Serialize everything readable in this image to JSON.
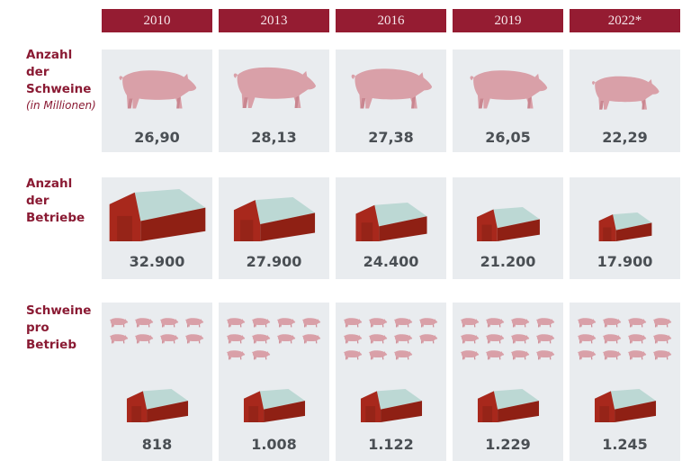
{
  "years": [
    "2010",
    "2013",
    "2016",
    "2019",
    "2022*"
  ],
  "rows": {
    "pigs": {
      "label_lines": [
        "Anzahl",
        "der",
        "Schweine"
      ],
      "sublabel": "(in Millionen)",
      "values": [
        "26,90",
        "28,13",
        "27,38",
        "26,05",
        "22,29"
      ]
    },
    "farms": {
      "label_lines": [
        "Anzahl",
        "der",
        "Betriebe"
      ],
      "values": [
        "32.900",
        "27.900",
        "24.400",
        "21.200",
        "17.900"
      ]
    },
    "per_farm": {
      "label_lines": [
        "Schweine",
        "pro",
        "Betrieb"
      ],
      "values": [
        "818",
        "1.008",
        "1.122",
        "1.229",
        "1.245"
      ],
      "mini_pig_counts": [
        8,
        10,
        11,
        12,
        12
      ]
    }
  },
  "colors": {
    "header_bg": "#951c32",
    "label_text": "#8a1a33",
    "box_bg": "#e9ecef",
    "pig": "#d9a0a8",
    "barn_front": "#a8281c",
    "barn_roof": "#bcd8d4",
    "value_text": "#4a4f54"
  },
  "chart_data": {
    "type": "table",
    "title": "",
    "categories": [
      "2010",
      "2013",
      "2016",
      "2019",
      "2022*"
    ],
    "series": [
      {
        "name": "Anzahl der Schweine (in Millionen)",
        "values": [
          26.9,
          28.13,
          27.38,
          26.05,
          22.29
        ]
      },
      {
        "name": "Anzahl der Betriebe",
        "values": [
          32900,
          27900,
          24400,
          21200,
          17900
        ]
      },
      {
        "name": "Schweine pro Betrieb",
        "values": [
          818,
          1008,
          1122,
          1229,
          1245
        ]
      }
    ]
  }
}
